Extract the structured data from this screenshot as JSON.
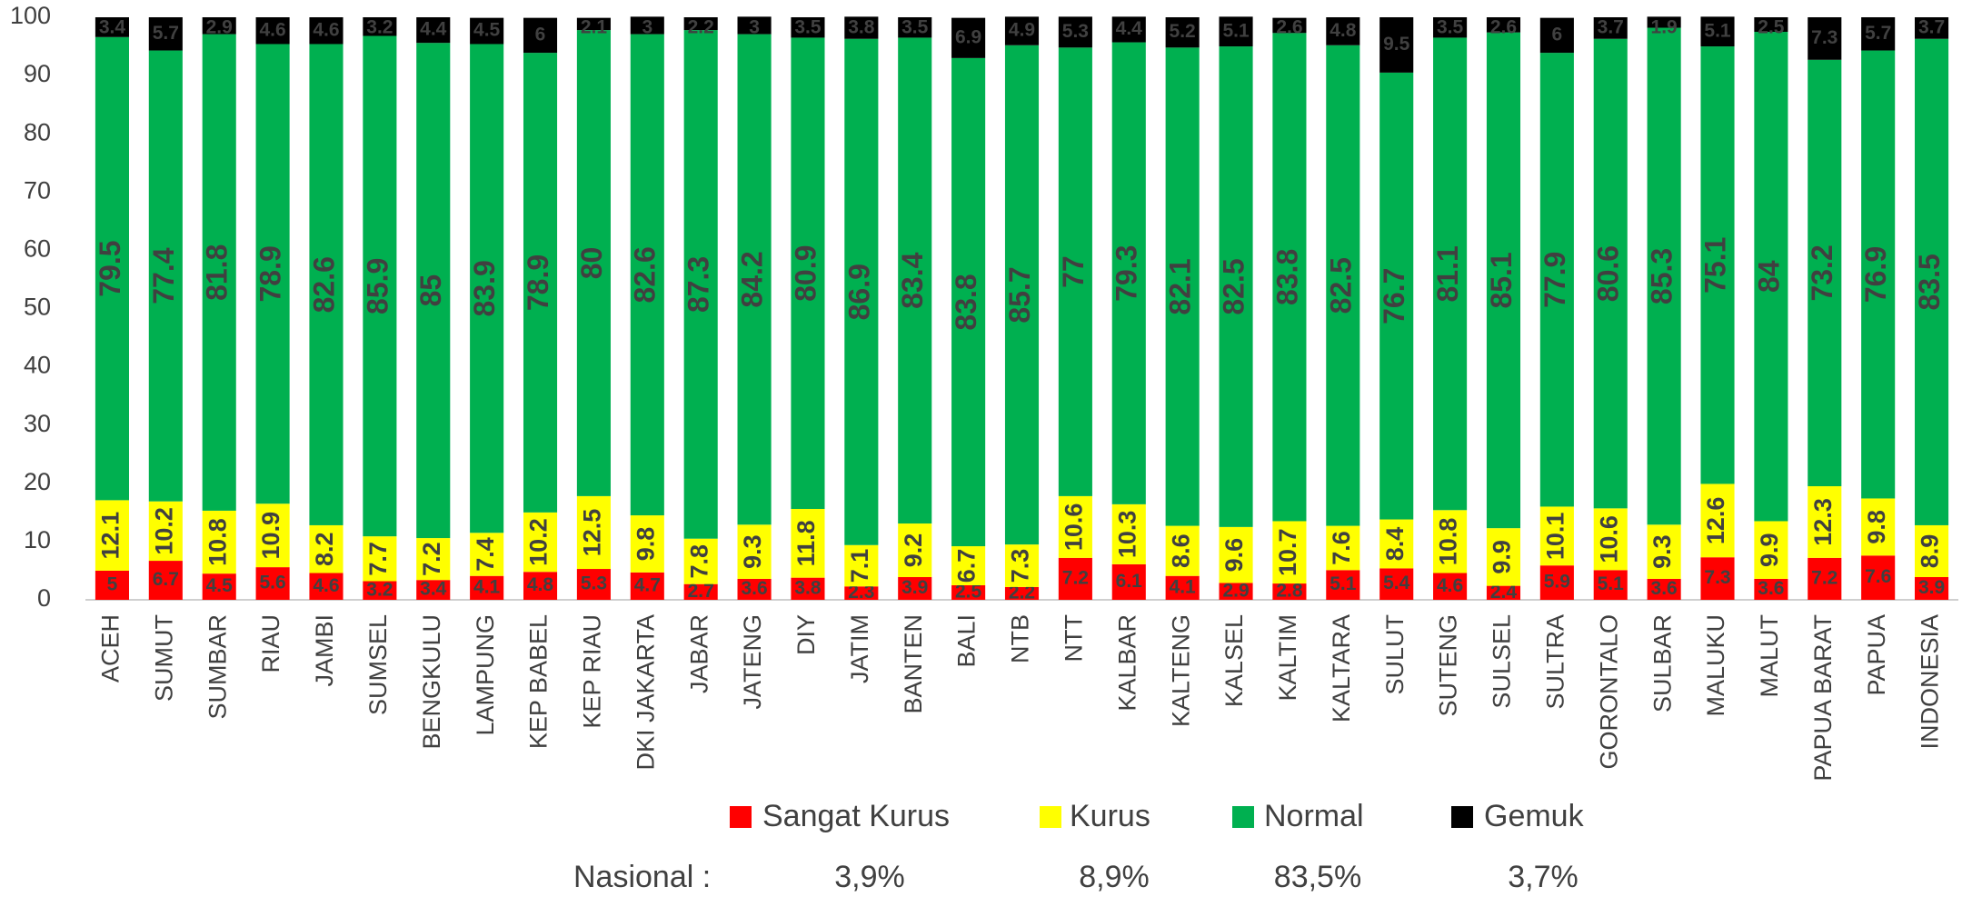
{
  "chart_data": {
    "type": "stacked_bar",
    "categories": [
      "ACEH",
      "SUMUT",
      "SUMBAR",
      "RIAU",
      "JAMBI",
      "SUMSEL",
      "BENGKULU",
      "LAMPUNG",
      "KEP BABEL",
      "KEP RIAU",
      "DKI JAKARTA",
      "JABAR",
      "JATENG",
      "DIY",
      "JATIM",
      "BANTEN",
      "BALI",
      "NTB",
      "NTT",
      "KALBAR",
      "KALTENG",
      "KALSEL",
      "KALTIM",
      "KALTARA",
      "SULUT",
      "SUTENG",
      "SULSEL",
      "SULTRA",
      "GORONTALO",
      "SULBAR",
      "MALUKU",
      "MALUT",
      "PAPUA BARAT",
      "PAPUA",
      "INDONESIA"
    ],
    "series": [
      {
        "name": "Sangat Kurus",
        "color": "#ff0000",
        "label_color": "#404040",
        "values": [
          5,
          6.7,
          4.5,
          5.6,
          4.6,
          3.2,
          3.4,
          4.1,
          4.8,
          5.3,
          4.7,
          2.7,
          3.6,
          3.8,
          2.3,
          3.9,
          2.5,
          2.2,
          7.2,
          6.1,
          4.1,
          2.9,
          2.8,
          5.1,
          5.4,
          4.6,
          2.4,
          5.9,
          5.1,
          3.6,
          7.3,
          3.6,
          7.2,
          7.6,
          3.9
        ]
      },
      {
        "name": "Kurus",
        "color": "#ffff00",
        "label_color": "#404040",
        "values": [
          12.1,
          10.2,
          10.8,
          10.9,
          8.2,
          7.7,
          7.2,
          7.4,
          10.2,
          12.5,
          9.8,
          7.8,
          9.3,
          11.8,
          7.1,
          9.2,
          6.7,
          7.3,
          10.6,
          10.3,
          8.6,
          9.6,
          10.7,
          7.6,
          8.4,
          10.8,
          9.9,
          10.1,
          10.6,
          9.3,
          12.6,
          9.9,
          12.3,
          9.8,
          8.9
        ]
      },
      {
        "name": "Normal",
        "color": "#00b050",
        "label_color": "#404040",
        "values": [
          79.5,
          77.4,
          81.8,
          78.9,
          82.6,
          85.9,
          85,
          83.9,
          78.9,
          80,
          82.6,
          87.3,
          84.2,
          80.9,
          86.9,
          83.4,
          83.8,
          85.7,
          77,
          79.3,
          82.1,
          82.5,
          83.8,
          82.5,
          76.7,
          81.1,
          85.1,
          77.9,
          80.6,
          85.3,
          75.1,
          84,
          73.2,
          76.9,
          83.5
        ]
      },
      {
        "name": "Gemuk",
        "color": "#000000",
        "label_color": "#ffc000",
        "values": [
          3.4,
          5.7,
          2.9,
          4.6,
          4.6,
          3.2,
          4.4,
          4.5,
          6,
          2.1,
          3,
          2.2,
          3,
          3.5,
          3.8,
          3.5,
          6.9,
          4.9,
          5.3,
          4.4,
          5.2,
          5.1,
          2.6,
          4.8,
          9.5,
          3.5,
          2.6,
          6,
          3.7,
          1.9,
          5.1,
          2.5,
          7.3,
          5.7,
          3.7
        ]
      }
    ],
    "ylim": [
      0,
      100
    ],
    "yticks": [
      0,
      10,
      20,
      30,
      40,
      50,
      60,
      70,
      80,
      90,
      100
    ],
    "grid": false,
    "footer": {
      "label": "Nasional :",
      "values": [
        "3,9%",
        "8,9%",
        "83,5%",
        "3,7%"
      ]
    }
  }
}
